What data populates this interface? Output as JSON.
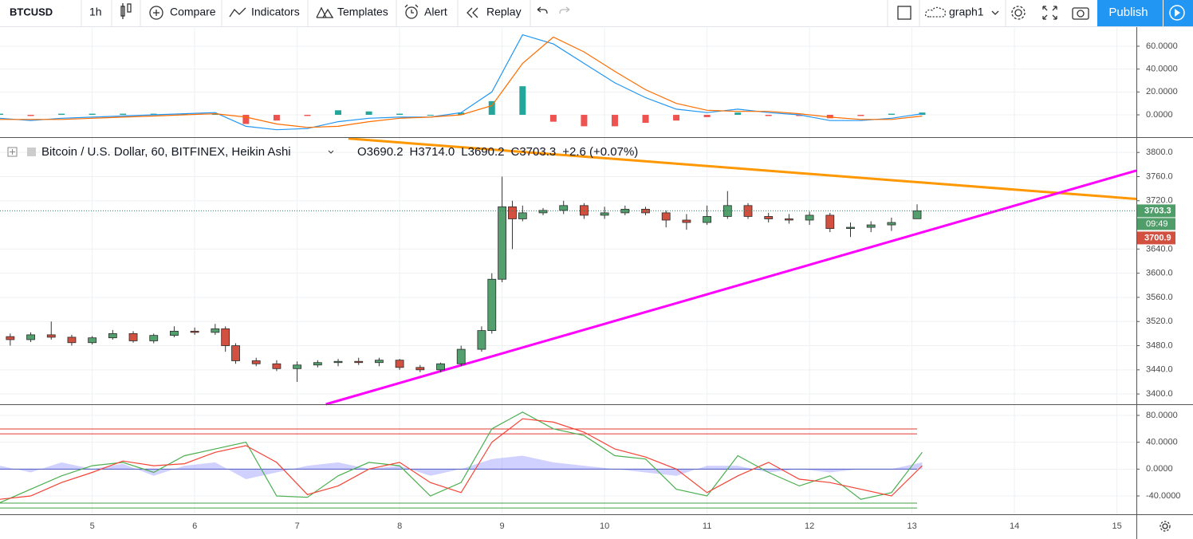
{
  "toolbar": {
    "symbol": "BTCUSD",
    "interval": "1h",
    "compare": "Compare",
    "indicators": "Indicators",
    "templates": "Templates",
    "alert": "Alert",
    "replay": "Replay",
    "layout": "graph1",
    "publish": "Publish"
  },
  "chart_data": [
    {
      "type": "line",
      "xlim": [
        4.1,
        15.19
      ],
      "ylim": [
        -19.5,
        76
      ],
      "yticks": [
        {
          "value": 0,
          "label": "0.0000"
        },
        {
          "value": 20,
          "label": "20.0000"
        },
        {
          "value": 40,
          "label": "40.0000"
        },
        {
          "value": 60,
          "label": "60.0000"
        }
      ],
      "x": [
        4.1,
        4.4,
        4.7,
        5.0,
        5.3,
        5.6,
        5.9,
        6.2,
        6.5,
        6.8,
        7.1,
        7.4,
        7.7,
        8.0,
        8.3,
        8.6,
        8.9,
        9.2,
        9.5,
        9.8,
        10.1,
        10.4,
        10.7,
        11.0,
        11.3,
        11.6,
        11.9,
        12.2,
        12.5,
        12.8,
        13.1
      ],
      "series": [
        {
          "style": "bars",
          "color": "#26a69a",
          "negative_color": "#ef5350",
          "values": [
            1,
            -1,
            1,
            1,
            1,
            1,
            1,
            1,
            -8,
            -5,
            -1,
            4,
            3,
            1,
            0,
            2,
            12,
            25,
            -6,
            -10,
            -10,
            -7,
            -5,
            -2,
            2,
            -1,
            -1,
            -3,
            -1,
            1,
            2
          ]
        },
        {
          "style": "line",
          "color": "#2196f3",
          "values": [
            -3,
            -5,
            -3,
            -2,
            -1,
            0,
            1,
            2,
            -10,
            -13,
            -12,
            -6,
            -3,
            -2,
            -2,
            2,
            20,
            70,
            62,
            45,
            28,
            15,
            5,
            2,
            5,
            2,
            0,
            -5,
            -5,
            -3,
            1
          ]
        },
        {
          "style": "line",
          "color": "#ff6d00",
          "values": [
            -4,
            -4,
            -4,
            -3,
            -2,
            -1,
            0,
            1,
            -2,
            -8,
            -11,
            -10,
            -6,
            -3,
            -2,
            0,
            8,
            45,
            68,
            55,
            38,
            22,
            10,
            4,
            3,
            3,
            1,
            -2,
            -4,
            -4,
            -1
          ]
        }
      ]
    },
    {
      "type": "candlestick",
      "legend_title": "Bitcoin / U.S. Dollar, 60, BITFINEX, Heikin Ashi",
      "ohlc_labels": [
        "O3690.2",
        "H3714.0",
        "L3690.2",
        "C3703.3",
        "+2.6 (+0.07%)"
      ],
      "xlim": [
        4.1,
        15.19
      ],
      "ylim": [
        3383,
        3824
      ],
      "xticks": [
        5,
        6,
        7,
        8,
        9,
        10,
        11,
        12,
        13,
        14,
        15
      ],
      "yticks": [
        {
          "value": 3400,
          "label": "3400.0"
        },
        {
          "value": 3440,
          "label": "3440.0"
        },
        {
          "value": 3480,
          "label": "3480.0"
        },
        {
          "value": 3520,
          "label": "3520.0"
        },
        {
          "value": 3560,
          "label": "3560.0"
        },
        {
          "value": 3600,
          "label": "3600.0"
        },
        {
          "value": 3640,
          "label": "3640.0"
        },
        {
          "value": 3720,
          "label": "3720.0"
        },
        {
          "value": 3760,
          "label": "3760.0"
        },
        {
          "value": 3800,
          "label": "3800.0"
        }
      ],
      "grid": true,
      "up_color": "#53a06e",
      "down_color": "#d1503f",
      "x": [
        4.2,
        4.4,
        4.6,
        4.8,
        5.0,
        5.2,
        5.4,
        5.6,
        5.8,
        6.0,
        6.2,
        6.3,
        6.4,
        6.6,
        6.8,
        7.0,
        7.2,
        7.4,
        7.6,
        7.8,
        8.0,
        8.2,
        8.4,
        8.6,
        8.8,
        8.9,
        9.0,
        9.1,
        9.2,
        9.4,
        9.6,
        9.8,
        10.0,
        10.2,
        10.4,
        10.6,
        10.8,
        11.0,
        11.2,
        11.4,
        11.6,
        11.8,
        12.0,
        12.2,
        12.4,
        12.6,
        12.8,
        13.05
      ],
      "open": [
        3495,
        3490,
        3498,
        3494,
        3485,
        3493,
        3500,
        3488,
        3497,
        3504,
        3502,
        3508,
        3480,
        3455,
        3450,
        3442,
        3448,
        3452,
        3454,
        3452,
        3456,
        3444,
        3440,
        3450,
        3474,
        3505,
        3590,
        3710,
        3690,
        3700,
        3704,
        3712,
        3696,
        3700,
        3706,
        3700,
        3688,
        3684,
        3694,
        3712,
        3694,
        3690,
        3688,
        3696,
        3674,
        3676,
        3680,
        3690.2
      ],
      "high": [
        3500,
        3502,
        3520,
        3498,
        3496,
        3506,
        3504,
        3500,
        3512,
        3510,
        3516,
        3512,
        3484,
        3460,
        3456,
        3454,
        3456,
        3458,
        3460,
        3460,
        3458,
        3448,
        3452,
        3480,
        3512,
        3600,
        3760,
        3720,
        3712,
        3708,
        3720,
        3716,
        3710,
        3712,
        3710,
        3704,
        3698,
        3712,
        3736,
        3716,
        3700,
        3698,
        3702,
        3700,
        3684,
        3686,
        3692,
        3714
      ],
      "low": [
        3480,
        3486,
        3490,
        3480,
        3482,
        3490,
        3485,
        3484,
        3494,
        3498,
        3498,
        3470,
        3450,
        3446,
        3438,
        3420,
        3444,
        3446,
        3448,
        3446,
        3440,
        3436,
        3436,
        3446,
        3470,
        3500,
        3585,
        3640,
        3686,
        3696,
        3698,
        3690,
        3690,
        3696,
        3696,
        3676,
        3672,
        3680,
        3690,
        3690,
        3684,
        3682,
        3680,
        3668,
        3660,
        3668,
        3670,
        3690.2
      ],
      "close": [
        3490,
        3498,
        3494,
        3485,
        3493,
        3500,
        3488,
        3497,
        3504,
        3502,
        3508,
        3480,
        3455,
        3450,
        3442,
        3448,
        3452,
        3454,
        3452,
        3456,
        3444,
        3440,
        3450,
        3474,
        3505,
        3590,
        3710,
        3690,
        3700,
        3704,
        3712,
        3696,
        3700,
        3706,
        3700,
        3688,
        3684,
        3694,
        3712,
        3694,
        3690,
        3688,
        3696,
        3674,
        3676,
        3680,
        3684,
        3703.3
      ],
      "trendlines": [
        {
          "color": "#ff9800",
          "x": [
            7.5,
            15.19
          ],
          "y": [
            3823,
            3723
          ]
        },
        {
          "color": "#ff00ff",
          "x": [
            7.28,
            15.19
          ],
          "y": [
            3383,
            3770
          ]
        }
      ],
      "last_price": 3703.3,
      "countdown": "09:49",
      "second_price": 3700.9
    },
    {
      "type": "line",
      "xlim": [
        4.1,
        15.19
      ],
      "ylim": [
        -67.3,
        95.4
      ],
      "yticks": [
        {
          "value": -40,
          "label": "-40.0000"
        },
        {
          "value": 0,
          "label": "0.0000"
        },
        {
          "value": 40,
          "label": "40.0000"
        },
        {
          "value": 80,
          "label": "80.0000"
        }
      ],
      "levels": [
        {
          "value": 59.8,
          "color": "#e53935"
        },
        {
          "value": 52.5,
          "color": "#e53935"
        },
        {
          "value": 0,
          "color": "#3f51b5"
        },
        {
          "value": -50.7,
          "color": "#43a047"
        },
        {
          "value": -57.9,
          "color": "#43a047"
        }
      ],
      "x": [
        4.1,
        4.4,
        4.7,
        5.0,
        5.3,
        5.6,
        5.9,
        6.2,
        6.5,
        6.8,
        7.1,
        7.4,
        7.7,
        8.0,
        8.3,
        8.6,
        8.9,
        9.2,
        9.5,
        9.8,
        10.1,
        10.4,
        10.7,
        11.0,
        11.3,
        11.6,
        11.9,
        12.2,
        12.5,
        12.8,
        13.1
      ],
      "series": [
        {
          "style": "area",
          "color": "#7b7bff",
          "values": [
            5,
            -5,
            10,
            0,
            8,
            -10,
            5,
            10,
            -15,
            -5,
            5,
            10,
            0,
            5,
            -10,
            0,
            15,
            20,
            10,
            5,
            0,
            -5,
            -10,
            5,
            5,
            -5,
            0,
            -5,
            0,
            0,
            10
          ]
        },
        {
          "style": "line",
          "color": "#4caf50",
          "values": [
            -50,
            -30,
            -10,
            5,
            10,
            -5,
            20,
            30,
            40,
            -40,
            -42,
            -10,
            10,
            5,
            -40,
            -20,
            60,
            85,
            60,
            50,
            20,
            15,
            -30,
            -40,
            20,
            -5,
            -25,
            -10,
            -45,
            -35,
            25
          ]
        },
        {
          "style": "line",
          "color": "#f44336",
          "values": [
            -45,
            -40,
            -20,
            -5,
            12,
            5,
            8,
            25,
            35,
            10,
            -38,
            -25,
            0,
            10,
            -20,
            -35,
            40,
            75,
            70,
            55,
            30,
            18,
            0,
            -35,
            -10,
            10,
            -15,
            -20,
            -30,
            -40,
            5
          ]
        }
      ]
    }
  ]
}
